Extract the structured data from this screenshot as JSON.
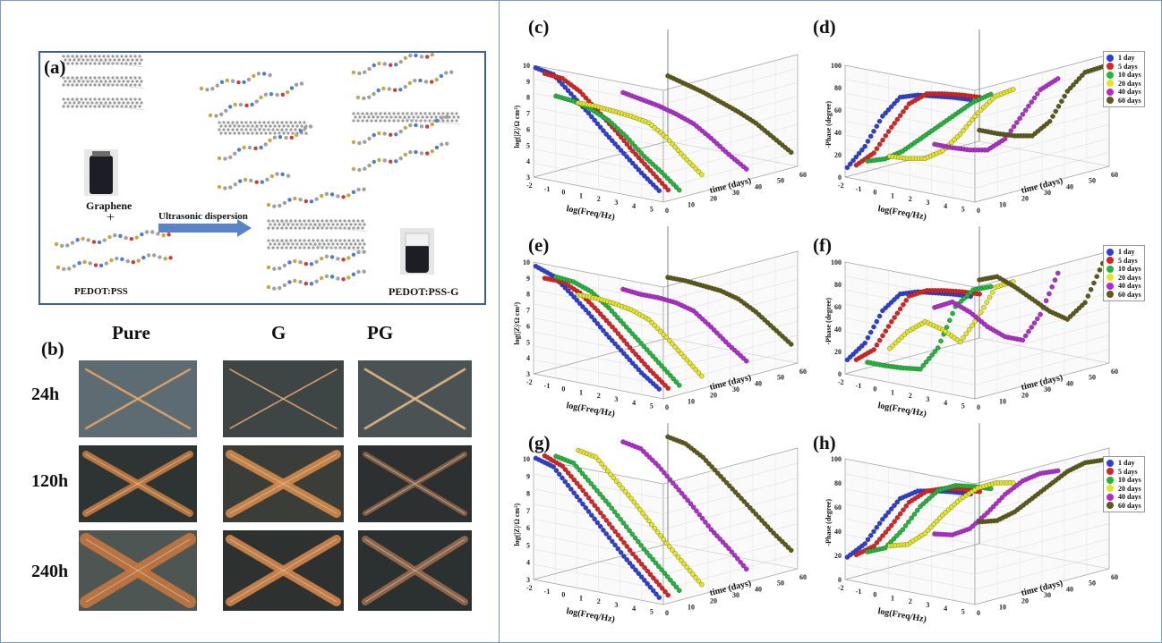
{
  "panels": {
    "a": "(a)",
    "b": "(b)",
    "c": "(c)",
    "d": "(d)",
    "e": "(e)",
    "f": "(f)",
    "g": "(g)",
    "h": "(h)"
  },
  "scheme": {
    "graphene": "Graphene",
    "plus": "+",
    "arrow_label": "Ultrasonic dispersion",
    "pedot_pss": "PEDOT:PSS",
    "pedot_pss_g": "PEDOT:PSS-G"
  },
  "photos": {
    "columns": [
      "Pure",
      "G",
      "PG"
    ],
    "rows": [
      "24h",
      "120h",
      "240h"
    ]
  },
  "legend": {
    "entries": [
      "1 day",
      "5 days",
      "10 days",
      "20 days",
      "40 days",
      "60 days"
    ],
    "colors": [
      "#2b3fd6",
      "#e02020",
      "#1fb83a",
      "#e6e61e",
      "#b32bd0",
      "#5c5a16"
    ]
  },
  "axes": {
    "freq_label": "log(Freq/Hz)",
    "time_label": "time (days)",
    "impedance_label": "log(|Z|/Ω cm²)",
    "phase_label": "-Phase (degree)",
    "freq_ticks": [
      "-2",
      "-1",
      "0",
      "1",
      "2",
      "3",
      "4",
      "5"
    ],
    "time_ticks": [
      "0",
      "10",
      "20",
      "30",
      "40",
      "50",
      "60"
    ],
    "impedance_ticks": [
      "3",
      "4",
      "5",
      "6",
      "7",
      "8",
      "9",
      "10"
    ],
    "phase_ticks": [
      "0",
      "20",
      "40",
      "60",
      "80",
      "100"
    ]
  },
  "chart_data": [
    {
      "panel": "c",
      "type": "scatter",
      "xlabel": "log(Freq/Hz)",
      "zlabel": "time (days)",
      "ylabel": "log(|Z|/Ω cm²)",
      "ylim": [
        3,
        10
      ],
      "series": [
        {
          "name": "1 day",
          "x": [
            -2,
            -1,
            0,
            1,
            2,
            3,
            4,
            5
          ],
          "y": [
            9.8,
            9.6,
            8.6,
            7.6,
            6.5,
            5.5,
            4.5,
            3.6
          ]
        },
        {
          "name": "5 days",
          "x": [
            -2,
            -1,
            0,
            1,
            2,
            3,
            4,
            5
          ],
          "y": [
            9.3,
            9.2,
            8.6,
            7.6,
            6.6,
            5.5,
            4.5,
            3.5
          ]
        },
        {
          "name": "10 days",
          "x": [
            -2,
            -1,
            0,
            1,
            2,
            3,
            4,
            5
          ],
          "y": [
            7.7,
            7.6,
            7.3,
            6.8,
            6.0,
            5.0,
            4.2,
            3.3
          ]
        },
        {
          "name": "20 days",
          "x": [
            -2,
            -1,
            0,
            1,
            2,
            3,
            4,
            5
          ],
          "y": [
            6.9,
            6.9,
            6.8,
            6.7,
            6.5,
            5.8,
            4.8,
            3.9
          ]
        },
        {
          "name": "40 days",
          "x": [
            -2,
            -1,
            0,
            1,
            2,
            3,
            4,
            5
          ],
          "y": [
            6.8,
            6.6,
            6.4,
            6.1,
            5.7,
            5.0,
            4.2,
            3.5
          ]
        },
        {
          "name": "60 days",
          "x": [
            -2,
            -1,
            0,
            1,
            2,
            3,
            4,
            5
          ],
          "y": [
            7.1,
            6.8,
            6.5,
            6.1,
            5.7,
            5.2,
            4.5,
            3.8
          ]
        }
      ]
    },
    {
      "panel": "d",
      "type": "scatter",
      "xlabel": "log(Freq/Hz)",
      "zlabel": "time (days)",
      "ylabel": "-Phase (degree)",
      "ylim": [
        0,
        100
      ],
      "series": [
        {
          "name": "1 day",
          "x": [
            -2,
            -1,
            0,
            1,
            2,
            3,
            4,
            5
          ],
          "y": [
            8,
            30,
            60,
            80,
            85,
            87,
            89,
            90
          ]
        },
        {
          "name": "5 days",
          "x": [
            -2,
            -1,
            0,
            1,
            2,
            3,
            4,
            5
          ],
          "y": [
            8,
            22,
            48,
            72,
            84,
            87,
            89,
            90
          ]
        },
        {
          "name": "10 days",
          "x": [
            -2,
            -1,
            0,
            1,
            2,
            3,
            4,
            5
          ],
          "y": [
            9,
            14,
            24,
            38,
            52,
            66,
            80,
            90
          ]
        },
        {
          "name": "20 days",
          "x": [
            -2,
            -1,
            0,
            1,
            2,
            3,
            4,
            5
          ],
          "y": [
            8,
            9,
            12,
            22,
            40,
            62,
            80,
            89
          ]
        },
        {
          "name": "40 days",
          "x": [
            -2,
            -1,
            0,
            1,
            2,
            3,
            4,
            5
          ],
          "y": [
            8,
            8,
            9,
            12,
            25,
            50,
            75,
            88
          ]
        },
        {
          "name": "60 days",
          "x": [
            -2,
            -1,
            0,
            1,
            2,
            3,
            4,
            5
          ],
          "y": [
            10,
            10,
            11,
            14,
            30,
            60,
            80,
            88
          ]
        }
      ]
    },
    {
      "panel": "e",
      "type": "scatter",
      "xlabel": "log(Freq/Hz)",
      "zlabel": "time (days)",
      "ylabel": "log(|Z|/Ω cm²)",
      "ylim": [
        3,
        10
      ],
      "series": [
        {
          "name": "1 day",
          "x": [
            -2,
            -1,
            0,
            1,
            2,
            3,
            4,
            5
          ],
          "y": [
            9.7,
            9.3,
            8.4,
            7.4,
            6.3,
            5.3,
            4.3,
            3.5
          ]
        },
        {
          "name": "5 days",
          "x": [
            -2,
            -1,
            0,
            1,
            2,
            3,
            4,
            5
          ],
          "y": [
            8.8,
            8.8,
            8.3,
            7.4,
            6.4,
            5.3,
            4.3,
            3.4
          ]
        },
        {
          "name": "10 days",
          "x": [
            -2,
            -1,
            0,
            1,
            2,
            3,
            4,
            5
          ],
          "y": [
            8.7,
            8.6,
            8.2,
            7.4,
            6.4,
            5.4,
            4.4,
            3.4
          ]
        },
        {
          "name": "20 days",
          "x": [
            -2,
            -1,
            0,
            1,
            2,
            3,
            4,
            5
          ],
          "y": [
            7.2,
            7.2,
            7.1,
            6.9,
            6.5,
            5.6,
            4.6,
            3.6
          ]
        },
        {
          "name": "40 days",
          "x": [
            -2,
            -1,
            0,
            1,
            2,
            3,
            4,
            5
          ],
          "y": [
            6.8,
            6.7,
            6.7,
            6.6,
            6.3,
            5.5,
            4.6,
            3.8
          ]
        },
        {
          "name": "60 days",
          "x": [
            -2,
            -1,
            0,
            1,
            2,
            3,
            4,
            5
          ],
          "y": [
            6.8,
            6.8,
            6.7,
            6.6,
            6.3,
            5.7,
            4.9,
            4.1
          ]
        }
      ]
    },
    {
      "panel": "f",
      "type": "scatter",
      "xlabel": "log(Freq/Hz)",
      "zlabel": "time (days)",
      "ylabel": "-Phase (degree)",
      "ylim": [
        0,
        100
      ],
      "series": [
        {
          "name": "1 day",
          "x": [
            -2,
            -1,
            0,
            1,
            2,
            3,
            4,
            5
          ],
          "y": [
            12,
            30,
            62,
            80,
            85,
            87,
            89,
            90
          ]
        },
        {
          "name": "5 days",
          "x": [
            -2,
            -1,
            0,
            1,
            2,
            3,
            4,
            5
          ],
          "y": [
            10,
            22,
            50,
            76,
            84,
            87,
            89,
            90
          ]
        },
        {
          "name": "10 days",
          "x": [
            -2,
            -1,
            0,
            1,
            2,
            3,
            4,
            5
          ],
          "y": [
            5,
            5,
            6,
            8,
            30,
            70,
            88,
            94
          ]
        },
        {
          "name": "20 days",
          "x": [
            -2,
            -1,
            0,
            1,
            2,
            3,
            4,
            5
          ],
          "y": [
            12,
            30,
            42,
            38,
            30,
            55,
            85,
            93
          ]
        },
        {
          "name": "40 days",
          "x": [
            -2,
            -1,
            0,
            1,
            2,
            3,
            4,
            5
          ],
          "y": [
            38,
            46,
            40,
            30,
            24,
            24,
            50,
            90
          ]
        },
        {
          "name": "60 days",
          "x": [
            -2,
            -1,
            0,
            1,
            2,
            3,
            4,
            5
          ],
          "y": [
            52,
            58,
            52,
            44,
            36,
            32,
            50,
            88
          ]
        }
      ]
    },
    {
      "panel": "g",
      "type": "scatter",
      "xlabel": "log(Freq/Hz)",
      "zlabel": "time (days)",
      "ylabel": "log(|Z|/Ω cm²)",
      "ylim": [
        3,
        10
      ],
      "series": [
        {
          "name": "1 day",
          "x": [
            -2,
            -1,
            0,
            1,
            2,
            3,
            4,
            5
          ],
          "y": [
            10.0,
            9.7,
            8.6,
            7.5,
            6.4,
            5.3,
            4.3,
            3.3
          ]
        },
        {
          "name": "5 days",
          "x": [
            -2,
            -1,
            0,
            1,
            2,
            3,
            4,
            5
          ],
          "y": [
            10.0,
            9.6,
            8.6,
            7.5,
            6.4,
            5.3,
            4.3,
            3.3
          ]
        },
        {
          "name": "10 days",
          "x": [
            -2,
            -1,
            0,
            1,
            2,
            3,
            4,
            5
          ],
          "y": [
            9.8,
            9.6,
            8.6,
            7.6,
            6.5,
            5.4,
            4.4,
            3.4
          ]
        },
        {
          "name": "20 days",
          "x": [
            -2,
            -1,
            0,
            1,
            2,
            3,
            4,
            5
          ],
          "y": [
            9.8,
            9.6,
            8.6,
            7.6,
            6.5,
            5.4,
            4.4,
            3.4
          ]
        },
        {
          "name": "40 days",
          "x": [
            -2,
            -1,
            0,
            1,
            2,
            3,
            4,
            5
          ],
          "y": [
            9.6,
            9.4,
            8.6,
            7.6,
            6.6,
            5.5,
            4.6,
            3.6
          ]
        },
        {
          "name": "60 days",
          "x": [
            -2,
            -1,
            0,
            1,
            2,
            3,
            4,
            5
          ],
          "y": [
            9.2,
            9.0,
            8.4,
            7.5,
            6.6,
            5.7,
            4.8,
            4.0
          ]
        }
      ]
    },
    {
      "panel": "h",
      "type": "scatter",
      "xlabel": "log(Freq/Hz)",
      "zlabel": "time (days)",
      "ylabel": "-Phase (degree)",
      "ylim": [
        0,
        100
      ],
      "series": [
        {
          "name": "1 day",
          "x": [
            -2,
            -1,
            0,
            1,
            2,
            3,
            4,
            5
          ],
          "y": [
            18,
            32,
            55,
            75,
            84,
            87,
            89,
            90
          ]
        },
        {
          "name": "5 days",
          "x": [
            -2,
            -1,
            0,
            1,
            2,
            3,
            4,
            5
          ],
          "y": [
            18,
            28,
            48,
            70,
            82,
            87,
            89,
            90
          ]
        },
        {
          "name": "10 days",
          "x": [
            -2,
            -1,
            0,
            1,
            2,
            3,
            4,
            5
          ],
          "y": [
            18,
            24,
            42,
            64,
            80,
            87,
            89,
            90
          ]
        },
        {
          "name": "20 days",
          "x": [
            -2,
            -1,
            0,
            1,
            2,
            3,
            4,
            5
          ],
          "y": [
            18,
            22,
            34,
            52,
            68,
            80,
            87,
            90
          ]
        },
        {
          "name": "40 days",
          "x": [
            -2,
            -1,
            0,
            1,
            2,
            3,
            4,
            5
          ],
          "y": [
            18,
            20,
            28,
            44,
            62,
            76,
            85,
            90
          ]
        },
        {
          "name": "60 days",
          "x": [
            -2,
            -1,
            0,
            1,
            2,
            3,
            4,
            5
          ],
          "y": [
            18,
            22,
            32,
            46,
            60,
            74,
            84,
            89
          ]
        }
      ]
    }
  ]
}
